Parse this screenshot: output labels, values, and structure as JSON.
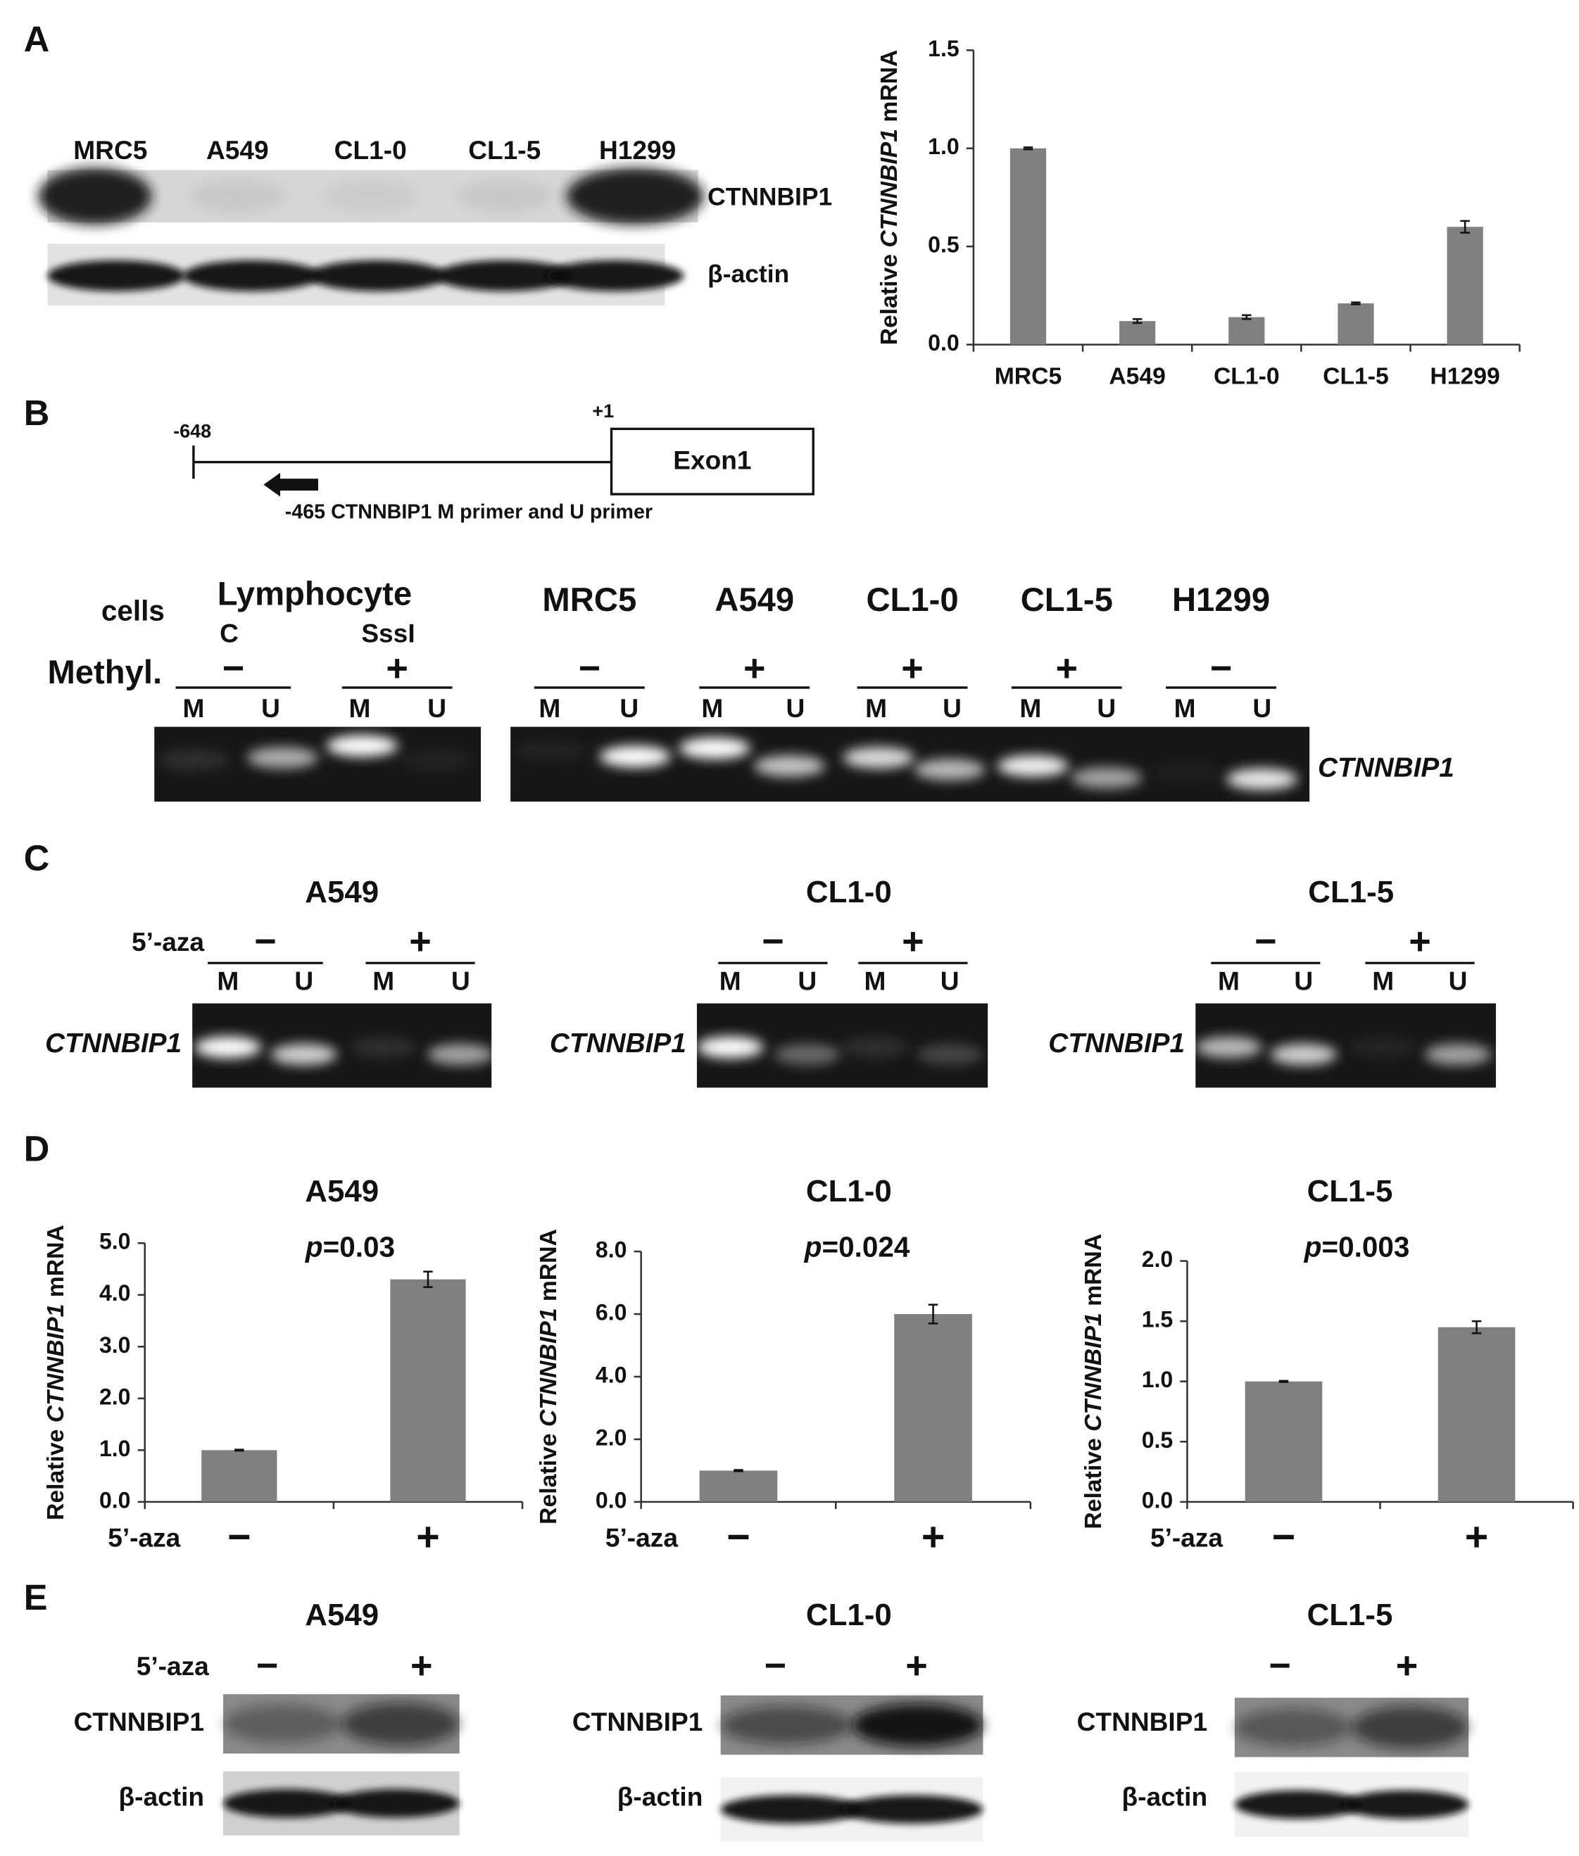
{
  "figure": {
    "A": {
      "letter": "A",
      "blot": {
        "lanes": [
          "MRC5",
          "A549",
          "CL1-0",
          "CL1-5",
          "H1299"
        ],
        "rows": [
          "CTNNBIP1",
          "β-actin"
        ]
      }
    },
    "B": {
      "letter": "B",
      "diagram": {
        "start": "-648",
        "tss": "+1",
        "exon": "Exon1",
        "primer": "-465 CTNNBIP1  M primer and U primer"
      },
      "gel": {
        "cells_label": "cells",
        "methyl_label": "Methyl.",
        "lymphocyte": "Lymphocyte",
        "samples": [
          {
            "name": "C",
            "methyl": "−"
          },
          {
            "name": "SssI",
            "methyl": "+"
          },
          {
            "name": "MRC5",
            "methyl": "−"
          },
          {
            "name": "A549",
            "methyl": "+"
          },
          {
            "name": "CL1-0",
            "methyl": "+"
          },
          {
            "name": "CL1-5",
            "methyl": "+"
          },
          {
            "name": "H1299",
            "methyl": "−"
          }
        ],
        "lanes": [
          "M",
          "U"
        ],
        "gene": "CTNNBIP1"
      }
    },
    "C": {
      "letter": "C",
      "treatment": "5’-aza",
      "gene": "CTNNBIP1",
      "signs": [
        "−",
        "+"
      ],
      "lanes": [
        "M",
        "U"
      ],
      "cells": [
        "A549",
        "CL1-0",
        "CL1-5"
      ]
    },
    "D": {
      "letter": "D"
    },
    "E": {
      "letter": "E",
      "treatment": "5’-aza",
      "signs": [
        "−",
        "+"
      ],
      "rows": [
        "CTNNBIP1",
        "β-actin"
      ],
      "cells": [
        "A549",
        "CL1-0",
        "CL1-5"
      ]
    }
  },
  "chart_data": [
    {
      "type": "bar",
      "y_label": "Relative CTNNBIP1 mRNA",
      "categories": [
        "MRC5",
        "A549",
        "CL1-0",
        "CL1-5",
        "H1299"
      ],
      "values": [
        1.0,
        0.12,
        0.14,
        0.21,
        0.6
      ],
      "errors": [
        0.005,
        0.01,
        0.01,
        0.005,
        0.03
      ],
      "color": "#808080",
      "ylim": [
        0,
        1.5
      ],
      "yticks": [
        {
          "value": 0,
          "label": "0.0"
        },
        {
          "value": 0.5,
          "label": "0.5"
        },
        {
          "value": 1,
          "label": "1.0"
        },
        {
          "value": 1.5,
          "label": "1.5"
        }
      ]
    },
    {
      "type": "bar",
      "title": "A549",
      "annotation": "p=0.03",
      "x_label": "5’-aza",
      "y_label": "Relative CTNNBIP1 mRNA",
      "categories": [
        "−",
        "+"
      ],
      "values": [
        1.0,
        4.3
      ],
      "errors": [
        0.01,
        0.15
      ],
      "color": "#808080",
      "ylim": [
        0,
        5
      ],
      "yticks": [
        {
          "value": 0,
          "label": "0.0"
        },
        {
          "value": 1,
          "label": "1.0"
        },
        {
          "value": 2,
          "label": "2.0"
        },
        {
          "value": 3,
          "label": "3.0"
        },
        {
          "value": 4,
          "label": "4.0"
        },
        {
          "value": 5,
          "label": "5.0"
        }
      ]
    },
    {
      "type": "bar",
      "title": "CL1-0",
      "annotation": "p=0.024",
      "x_label": "5’-aza",
      "y_label": "Relative CTNNBIP1 mRNA",
      "categories": [
        "−",
        "+"
      ],
      "values": [
        1.0,
        6.0
      ],
      "errors": [
        0.02,
        0.3
      ],
      "color": "#808080",
      "ylim": [
        0,
        8
      ],
      "yticks": [
        {
          "value": 0,
          "label": "0.0"
        },
        {
          "value": 2,
          "label": "2.0"
        },
        {
          "value": 4,
          "label": "4.0"
        },
        {
          "value": 6,
          "label": "6.0"
        },
        {
          "value": 8,
          "label": "8.0"
        }
      ]
    },
    {
      "type": "bar",
      "title": "CL1-5",
      "annotation": "p=0.003",
      "x_label": "5’-aza",
      "y_label": "Relative CTNNBIP1 mRNA",
      "categories": [
        "−",
        "+"
      ],
      "values": [
        1.0,
        1.45
      ],
      "errors": [
        0.005,
        0.05
      ],
      "color": "#808080",
      "ylim": [
        0,
        2
      ],
      "yticks": [
        {
          "value": 0,
          "label": "0.0"
        },
        {
          "value": 0.5,
          "label": "0.5"
        },
        {
          "value": 1,
          "label": "1.0"
        },
        {
          "value": 1.5,
          "label": "1.5"
        },
        {
          "value": 2,
          "label": "2.0"
        }
      ]
    }
  ]
}
